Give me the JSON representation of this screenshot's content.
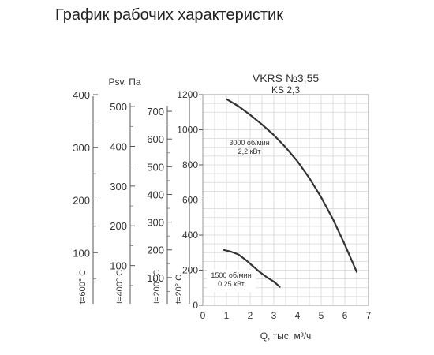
{
  "page": {
    "title": "График рабочих характеристик"
  },
  "chart_data": {
    "type": "line",
    "model": "VKRS №3,55",
    "submodel": "KS 2,3",
    "xlabel": "Q, тыс. м³/ч",
    "ylabel": "Psv, Па",
    "xlim": [
      0,
      7
    ],
    "ylim": [
      0,
      1200
    ],
    "x_ticks": [
      "0",
      "1",
      "2",
      "3",
      "4",
      "5",
      "6",
      "7"
    ],
    "y_ticks": [
      "0",
      "200",
      "400",
      "600",
      "800",
      "1000",
      "1200"
    ],
    "grid": true,
    "temperature_scales": [
      {
        "label": "t=600° C",
        "ticks": [
          "100",
          "200",
          "300",
          "400"
        ],
        "values": [
          100,
          200,
          300,
          400
        ]
      },
      {
        "label": "t=400° C",
        "ticks": [
          "100",
          "200",
          "300",
          "400",
          "500"
        ],
        "values": [
          100,
          200,
          300,
          400,
          500
        ]
      },
      {
        "label": "t=200° C",
        "ticks": [
          "100",
          "200",
          "300",
          "400",
          "500",
          "600",
          "700"
        ],
        "values": [
          100,
          200,
          300,
          400,
          500,
          600,
          700
        ]
      },
      {
        "label": "t=20° C",
        "ticks": [],
        "values": []
      }
    ],
    "series": [
      {
        "name": "3000 об/мин 2,2 кВт",
        "label_line1": "3000 об/мин",
        "label_line2": "2,2 кВт",
        "x": [
          1.0,
          1.5,
          2.0,
          2.5,
          3.0,
          3.5,
          4.0,
          4.5,
          5.0,
          5.5,
          6.0,
          6.5
        ],
        "y": [
          1175,
          1135,
          1085,
          1030,
          970,
          900,
          820,
          725,
          615,
          490,
          345,
          190
        ]
      },
      {
        "name": "1500 об/мин 0,25 кВт",
        "label_line1": "1500 об/мин",
        "label_line2": "0,25 кВт",
        "x": [
          0.9,
          1.2,
          1.5,
          1.8,
          2.1,
          2.4,
          2.7,
          3.0,
          3.25
        ],
        "y": [
          315,
          305,
          290,
          260,
          225,
          190,
          160,
          135,
          105
        ]
      }
    ]
  }
}
